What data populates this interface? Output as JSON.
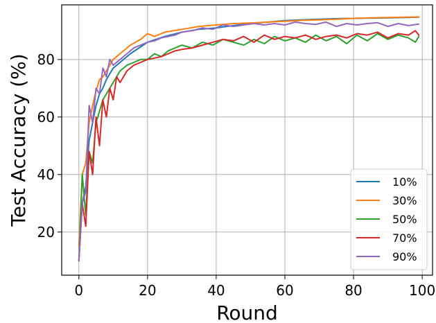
{
  "chart_data": {
    "type": "line",
    "xlabel": "Round",
    "ylabel": "Test Accuracy (%)",
    "xlim": [
      -5,
      103
    ],
    "ylim": [
      5,
      99
    ],
    "xticks": [
      0,
      20,
      40,
      60,
      80,
      100
    ],
    "yticks": [
      20,
      40,
      60,
      80
    ],
    "grid": true,
    "legend_position": "lower-right",
    "series": [
      {
        "name": "10%",
        "color": "#1f77b4",
        "x": [
          0,
          1,
          2,
          3,
          4,
          5,
          6,
          7,
          8,
          10,
          12,
          15,
          20,
          25,
          30,
          35,
          40,
          45,
          50,
          55,
          60,
          65,
          70,
          75,
          80,
          85,
          90,
          95,
          99
        ],
        "y": [
          10,
          30,
          36,
          52,
          58,
          64,
          68,
          70,
          73,
          77,
          79,
          82,
          86,
          88,
          89.5,
          90.5,
          91,
          91.8,
          92.5,
          93,
          93.5,
          93.8,
          94,
          94.2,
          94.3,
          94.4,
          94.5,
          94.6,
          94.7
        ]
      },
      {
        "name": "30%",
        "color": "#ff7f0e",
        "x": [
          0,
          1,
          2,
          3,
          4,
          5,
          6,
          7,
          8,
          10,
          12,
          15,
          18,
          20,
          22,
          25,
          30,
          35,
          40,
          45,
          50,
          55,
          60,
          65,
          70,
          75,
          80,
          85,
          90,
          95,
          99
        ],
        "y": [
          15,
          40,
          44,
          58,
          64,
          69,
          73,
          74,
          76,
          80,
          82,
          85,
          87,
          89,
          88,
          89.5,
          90.5,
          91.5,
          92,
          92.5,
          92.7,
          93,
          93.3,
          93.6,
          93.8,
          94,
          94.3,
          94.5,
          94.6,
          94.7,
          94.8
        ]
      },
      {
        "name": "50%",
        "color": "#2ca02c",
        "x": [
          0,
          1,
          2,
          3,
          4,
          5,
          6,
          7,
          8,
          9,
          10,
          12,
          14,
          16,
          18,
          20,
          22,
          24,
          26,
          28,
          30,
          33,
          36,
          39,
          42,
          45,
          48,
          51,
          54,
          57,
          60,
          63,
          66,
          69,
          72,
          75,
          78,
          81,
          84,
          87,
          90,
          93,
          96,
          98,
          99
        ],
        "y": [
          10,
          40,
          26,
          48,
          44,
          58,
          62,
          66,
          68,
          70,
          72,
          76,
          78,
          79,
          80,
          80,
          82,
          81,
          83,
          84,
          85,
          84,
          86,
          85,
          87,
          86,
          85,
          87,
          85.5,
          88,
          86.5,
          87.5,
          86,
          88.5,
          86.5,
          88,
          85.5,
          88.5,
          86.5,
          89,
          87,
          88.5,
          87.5,
          86,
          88
        ]
      },
      {
        "name": "70%",
        "color": "#d62728",
        "x": [
          0,
          1,
          2,
          3,
          4,
          5,
          6,
          7,
          8,
          9,
          10,
          11,
          12,
          14,
          16,
          18,
          20,
          22,
          24,
          26,
          28,
          30,
          33,
          36,
          39,
          42,
          45,
          48,
          51,
          54,
          57,
          60,
          63,
          66,
          69,
          72,
          75,
          78,
          81,
          84,
          87,
          90,
          93,
          96,
          98,
          99
        ],
        "y": [
          10,
          30,
          22,
          48,
          40,
          60,
          50,
          66,
          60,
          70,
          66,
          74,
          72,
          76,
          78,
          79,
          80,
          80.5,
          81,
          82,
          83,
          83.5,
          84,
          85,
          86,
          87,
          86.5,
          88,
          86,
          88.5,
          87,
          88,
          87.5,
          88.5,
          87,
          88,
          88.5,
          87.5,
          89,
          88.5,
          89.5,
          87.5,
          89,
          88.5,
          90,
          88.5
        ]
      },
      {
        "name": "90%",
        "color": "#9467bd",
        "x": [
          0,
          1,
          2,
          3,
          4,
          5,
          6,
          7,
          8,
          9,
          10,
          12,
          14,
          16,
          18,
          20,
          22,
          24,
          26,
          28,
          30,
          33,
          36,
          39,
          42,
          45,
          48,
          51,
          54,
          57,
          60,
          63,
          66,
          69,
          72,
          75,
          78,
          81,
          84,
          87,
          90,
          93,
          96,
          99
        ],
        "y": [
          10,
          30,
          34,
          64,
          58,
          70,
          68,
          77,
          74,
          80,
          78,
          80,
          82,
          84,
          85,
          86,
          86.5,
          87.5,
          88,
          88.5,
          89.5,
          90,
          91,
          90.5,
          92,
          91.5,
          92,
          92.5,
          92,
          92.5,
          92,
          93,
          92.5,
          92.2,
          93,
          91.5,
          92.5,
          92,
          92.5,
          92.8,
          91.5,
          92.5,
          91.8,
          92.3
        ]
      }
    ]
  }
}
